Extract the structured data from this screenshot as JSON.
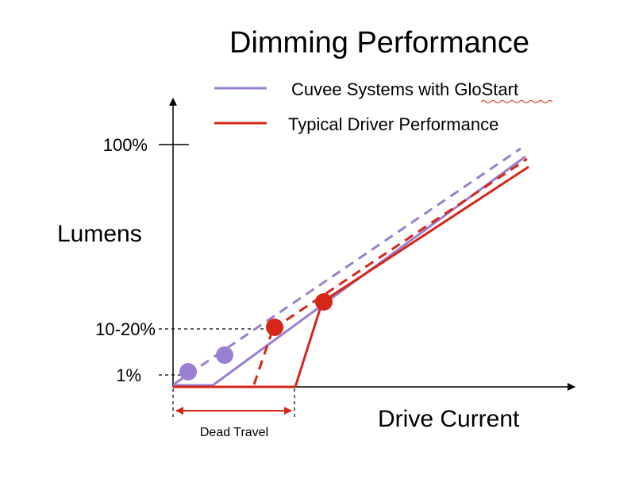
{
  "chart_data": {
    "type": "line",
    "title": "Dimming Performance",
    "xlabel": "Drive Current",
    "ylabel": "Lumens",
    "y_ticks": [
      "100%",
      "10-20%",
      "1%"
    ],
    "legend": [
      {
        "name": "Cuvee Systems with GloStart",
        "color": "#9b7fd1"
      },
      {
        "name": "Typical Driver Performance",
        "color": "#d62618"
      }
    ],
    "annotation": "Dead Travel",
    "colors": {
      "purple": "#9b7fd1",
      "red": "#d62618",
      "axis": "#000000"
    }
  }
}
